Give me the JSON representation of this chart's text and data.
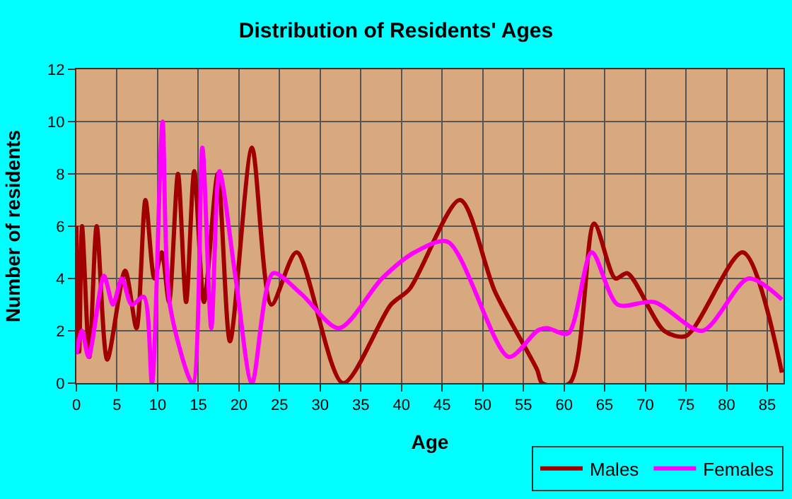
{
  "chart_data": {
    "type": "line",
    "title": "Distribution of Residents' Ages",
    "xlabel": "Age",
    "ylabel": "Number of residents",
    "xlim": [
      0,
      87
    ],
    "xticks": [
      0,
      5,
      10,
      15,
      20,
      25,
      30,
      35,
      40,
      45,
      50,
      55,
      60,
      65,
      70,
      75,
      80,
      85
    ],
    "ylim": [
      0,
      12
    ],
    "yticks": [
      0,
      2,
      4,
      6,
      8,
      10,
      12
    ],
    "grid": true,
    "legend": "bottom right",
    "series": [
      {
        "name": "Males",
        "color": "#a00000",
        "x": [
          0,
          0.35,
          0.7,
          1.6,
          2.5,
          3.8,
          6,
          7.4,
          8.5,
          9.6,
          10.5,
          11.4,
          12.5,
          13.5,
          14.5,
          15.7,
          17.4,
          18.9,
          21.6,
          24,
          27.1,
          32.8,
          38.7,
          41,
          47.2,
          51.5,
          56.7,
          57.3,
          60.7,
          63.7,
          66.3,
          67.8,
          72.3,
          75,
          82,
          86.8
        ],
        "values": [
          6,
          1.2,
          6,
          1,
          6,
          0.9,
          4.3,
          2.1,
          7,
          4,
          5,
          3.1,
          8,
          3.1,
          8.1,
          3.1,
          8,
          1.6,
          9,
          3,
          5,
          0,
          3,
          3.6,
          7,
          3.5,
          0.5,
          0,
          0,
          6.1,
          4,
          4.2,
          2,
          1.8,
          5,
          0.4
        ]
      },
      {
        "name": "Females",
        "color": "#ff00ff",
        "x": [
          0,
          0.7,
          1.5,
          3.4,
          4.5,
          5.6,
          6.8,
          8.3,
          9.3,
          10.6,
          11.5,
          14.3,
          15.5,
          16.6,
          17.6,
          19.6,
          21.6,
          24.2,
          27.7,
          32.3,
          37.6,
          41.6,
          45.7,
          53.2,
          56.7,
          57.9,
          60.5,
          63.4,
          66.6,
          71.1,
          77,
          82.7,
          86.8
        ],
        "values": [
          1.1,
          2,
          1,
          4.1,
          3,
          4,
          3,
          3.3,
          0,
          10,
          3,
          0,
          9,
          2.1,
          8.1,
          4,
          0,
          4.2,
          3.4,
          2.1,
          4,
          5,
          5.4,
          1,
          2,
          2.1,
          1.9,
          5,
          3,
          3.1,
          2,
          4,
          3.2
        ]
      }
    ]
  }
}
